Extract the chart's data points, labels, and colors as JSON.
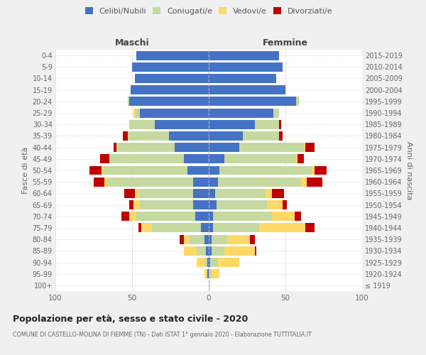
{
  "age_groups": [
    "100+",
    "95-99",
    "90-94",
    "85-89",
    "80-84",
    "75-79",
    "70-74",
    "65-69",
    "60-64",
    "55-59",
    "50-54",
    "45-49",
    "40-44",
    "35-39",
    "30-34",
    "25-29",
    "20-24",
    "15-19",
    "10-14",
    "5-9",
    "0-4"
  ],
  "birth_years": [
    "≤ 1919",
    "1920-1924",
    "1925-1929",
    "1930-1934",
    "1935-1939",
    "1940-1944",
    "1945-1949",
    "1950-1954",
    "1955-1959",
    "1960-1964",
    "1965-1969",
    "1970-1974",
    "1975-1979",
    "1980-1984",
    "1985-1989",
    "1990-1994",
    "1995-1999",
    "2000-2004",
    "2005-2009",
    "2010-2014",
    "2015-2019"
  ],
  "colors": {
    "celibe": "#4472C4",
    "coniugato": "#c5d9a0",
    "vedovo": "#ffd966",
    "divorziato": "#c00000"
  },
  "maschi": {
    "celibe": [
      0,
      1,
      1,
      2,
      3,
      5,
      9,
      10,
      10,
      10,
      14,
      16,
      22,
      26,
      35,
      45,
      52,
      51,
      48,
      50,
      47
    ],
    "coniugato": [
      0,
      0,
      2,
      6,
      10,
      32,
      38,
      35,
      36,
      56,
      55,
      49,
      38,
      27,
      17,
      3,
      1,
      0,
      0,
      0,
      0
    ],
    "vedovo": [
      0,
      2,
      5,
      8,
      3,
      7,
      5,
      4,
      2,
      2,
      1,
      0,
      0,
      0,
      0,
      1,
      0,
      0,
      0,
      0,
      0
    ],
    "divorziato": [
      0,
      0,
      0,
      0,
      3,
      2,
      5,
      3,
      7,
      7,
      8,
      6,
      2,
      3,
      0,
      0,
      0,
      0,
      0,
      0,
      0
    ]
  },
  "femmine": {
    "nubile": [
      0,
      0,
      1,
      2,
      2,
      3,
      3,
      5,
      4,
      6,
      7,
      10,
      20,
      22,
      30,
      42,
      57,
      50,
      44,
      48,
      46
    ],
    "coniugata": [
      0,
      2,
      5,
      8,
      10,
      30,
      38,
      33,
      33,
      54,
      60,
      47,
      42,
      24,
      16,
      4,
      2,
      0,
      0,
      0,
      0
    ],
    "vedova": [
      1,
      5,
      14,
      20,
      15,
      30,
      15,
      10,
      4,
      4,
      2,
      1,
      1,
      0,
      0,
      0,
      0,
      0,
      0,
      0,
      0
    ],
    "divorziata": [
      0,
      0,
      0,
      1,
      3,
      6,
      4,
      3,
      8,
      10,
      8,
      4,
      6,
      2,
      1,
      0,
      0,
      0,
      0,
      0,
      0
    ]
  },
  "title": "Popolazione per età, sesso e stato civile - 2020",
  "subtitle": "COMUNE DI CASTELLO-MOLINA DI FIEMME (TN) - Dati ISTAT 1° gennaio 2020 - Elaborazione TUTTITALIA.IT",
  "xlabel_maschi": "Maschi",
  "xlabel_femmine": "Femmine",
  "ylabel": "Fasce di età",
  "ylabel_right": "Anni di nascita",
  "xlim": 100,
  "bg_color": "#f0f0f0",
  "plot_bg": "#ffffff",
  "grid_color": "#cccccc",
  "legend_labels": [
    "Celibi/Nubili",
    "Coniugati/e",
    "Vedovi/e",
    "Divorziati/e"
  ]
}
